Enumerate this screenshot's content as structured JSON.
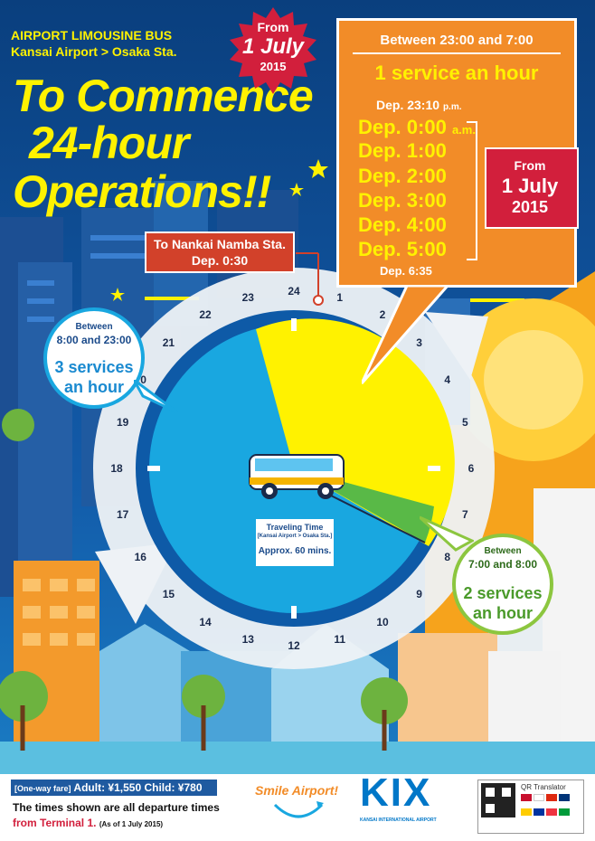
{
  "header": {
    "line1": "AIRPORT LIMOUSINE BUS",
    "line2": "Kansai Airport > Osaka Sta.",
    "headline": [
      "To Commence",
      "24-hour",
      "Operations!!"
    ]
  },
  "badge_top": {
    "from": "From",
    "date": "1 July",
    "year": "2015"
  },
  "night_box": {
    "title": "Between 23:00 and 7:00",
    "subtitle": "1 service an hour",
    "first_dep": "Dep. 23:10",
    "first_suffix": "p.m.",
    "deps": [
      "Dep. 0:00",
      "Dep. 1:00",
      "Dep. 2:00",
      "Dep. 3:00",
      "Dep. 4:00",
      "Dep. 5:00"
    ],
    "am_suffix": "a.m.",
    "last_dep": "Dep. 6:35"
  },
  "badge_side": {
    "from": "From",
    "date": "1 July",
    "year": "2015"
  },
  "namba_box": {
    "line1": "To Nankai Namba Sta.",
    "line2": "Dep. 0:30"
  },
  "bubble_day": {
    "small": "Between",
    "range": "8:00 and 23:00",
    "main1": "3 services",
    "main2": "an hour"
  },
  "bubble_morning": {
    "small": "Between",
    "range": "7:00 and 8:00",
    "main1": "2 services",
    "main2": "an hour"
  },
  "clock": {
    "numbers": [
      "24",
      "1",
      "2",
      "3",
      "4",
      "5",
      "6",
      "7",
      "8",
      "9",
      "10",
      "11",
      "12",
      "13",
      "14",
      "15",
      "16",
      "17",
      "18",
      "19",
      "20",
      "21",
      "22",
      "23"
    ],
    "travel_label": "Traveling Time",
    "travel_route": "[Kansai Airport > Osaka Sta.]",
    "travel_time": "Approx. 60 mins."
  },
  "footer": {
    "fare_tag": "[One-way fare]",
    "adult": "Adult: ¥1,550",
    "child": "Child: ¥780",
    "note1": "The times shown are all departure times",
    "note2": "from Terminal 1.",
    "note3": "(As of 1 July 2015)",
    "smile_logo": "Smile Airport!",
    "kix_logo": "KIX",
    "kix_sub": "KANSAI INTERNATIONAL AIRPORT",
    "qr_label": "QR Translator"
  },
  "colors": {
    "night_orange": "#f28c28",
    "badge_red": "#d21f3c",
    "sky_blue": "#1aa0dc",
    "yellow": "#fff200",
    "green": "#8cc63f",
    "kix_blue": "#0077c8"
  }
}
